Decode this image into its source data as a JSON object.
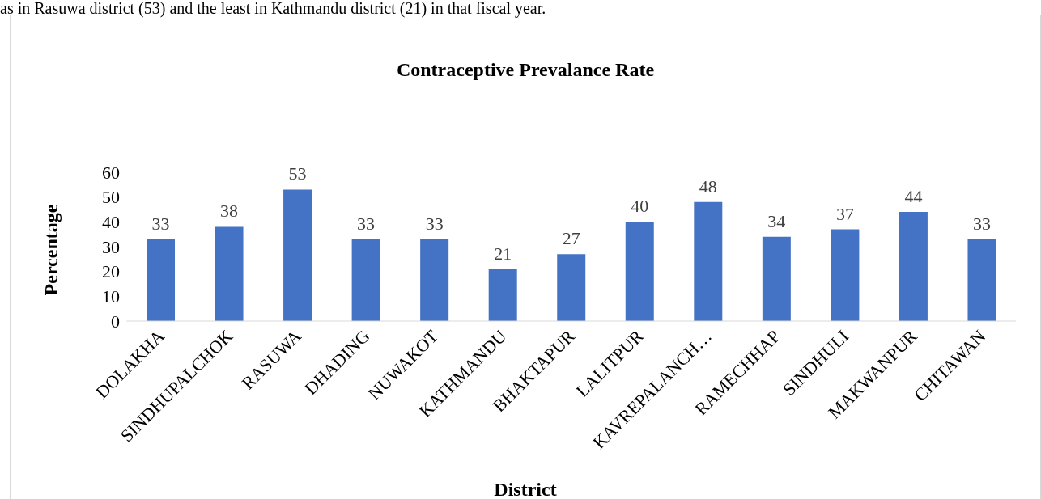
{
  "chart_data": {
    "type": "bar",
    "title": "Contraceptive Prevalance Rate",
    "xlabel": "District",
    "ylabel": "Percentage",
    "annotations": [
      "as in Rasuwa district (53) and the least in Kathmandu district (21) in that fiscal year."
    ],
    "categories": [
      "DOLAKHA",
      "SINDHUPALCHOK",
      "RASUWA",
      "DHADING",
      "NUWAKOT",
      "KATHMANDU",
      "BHAKTAPUR",
      "LALITPUR",
      "KAVREPALANCH…",
      "RAMECHHAP",
      "SINDHULI",
      "MAKWANPUR",
      "CHITAWAN"
    ],
    "values": [
      33,
      38,
      53,
      33,
      33,
      21,
      27,
      40,
      48,
      34,
      37,
      44,
      33
    ],
    "color": "#4472c4",
    "ylim": [
      0,
      60
    ],
    "yticks": [
      0,
      10,
      20,
      30,
      40,
      50,
      60
    ],
    "data_labels": true
  }
}
